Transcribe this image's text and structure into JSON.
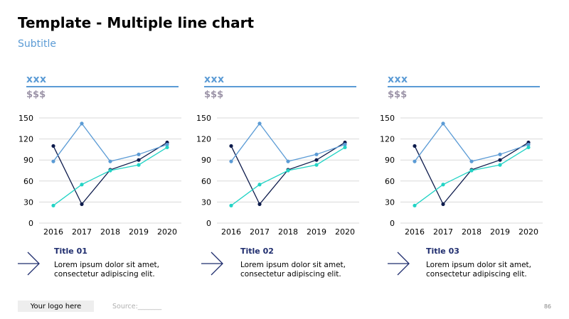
{
  "slide": {
    "title": "Template - Multiple line chart",
    "subtitle": "Subtitle",
    "logo_text": "Your logo here",
    "source_text": "Source:_______",
    "page_number": "86"
  },
  "colors": {
    "title": "#000000",
    "subtitle": "#5b9bd5",
    "accent": "#5b9bd5",
    "money": "#9b93a7",
    "caption_title": "#1f2d6e",
    "series_navy": "#0d1b4c",
    "series_light_blue": "#5b9bd5",
    "series_teal": "#22d3c5",
    "grid": "#d9d9d9"
  },
  "panels": [
    {
      "heading": "xxx",
      "value_label": "$$$",
      "caption_title": "Title 01",
      "caption_body": "Lorem ipsum dolor sit amet, consectetur adipiscing elit."
    },
    {
      "heading": "xxx",
      "value_label": "$$$",
      "caption_title": "Title 02",
      "caption_body": "Lorem ipsum dolor sit amet, consectetur adipiscing elit."
    },
    {
      "heading": "xxx",
      "value_label": "$$$",
      "caption_title": "Title 03",
      "caption_body": "Lorem ipsum dolor sit amet, consectetur adipiscing elit."
    }
  ],
  "chart_data": [
    {
      "type": "line",
      "x": [
        "2016",
        "2017",
        "2018",
        "2019",
        "2020"
      ],
      "ylim": [
        0,
        150
      ],
      "yticks": [
        0,
        30,
        60,
        90,
        120,
        150
      ],
      "grid": true,
      "series": [
        {
          "color": "#0d1b4c",
          "values": [
            110,
            27,
            76,
            90,
            115
          ]
        },
        {
          "color": "#5b9bd5",
          "values": [
            88,
            142,
            88,
            98,
            112
          ]
        },
        {
          "color": "#22d3c5",
          "values": [
            25,
            55,
            75,
            83,
            108
          ]
        }
      ]
    },
    {
      "type": "line",
      "x": [
        "2016",
        "2017",
        "2018",
        "2019",
        "2020"
      ],
      "ylim": [
        0,
        150
      ],
      "yticks": [
        0,
        30,
        60,
        90,
        120,
        150
      ],
      "grid": true,
      "series": [
        {
          "color": "#0d1b4c",
          "values": [
            110,
            27,
            76,
            90,
            115
          ]
        },
        {
          "color": "#5b9bd5",
          "values": [
            88,
            142,
            88,
            98,
            112
          ]
        },
        {
          "color": "#22d3c5",
          "values": [
            25,
            55,
            75,
            83,
            108
          ]
        }
      ]
    },
    {
      "type": "line",
      "x": [
        "2016",
        "2017",
        "2018",
        "2019",
        "2020"
      ],
      "ylim": [
        0,
        150
      ],
      "yticks": [
        0,
        30,
        60,
        90,
        120,
        150
      ],
      "grid": true,
      "series": [
        {
          "color": "#0d1b4c",
          "values": [
            110,
            27,
            76,
            90,
            115
          ]
        },
        {
          "color": "#5b9bd5",
          "values": [
            88,
            142,
            88,
            98,
            112
          ]
        },
        {
          "color": "#22d3c5",
          "values": [
            25,
            55,
            75,
            83,
            108
          ]
        }
      ]
    }
  ]
}
